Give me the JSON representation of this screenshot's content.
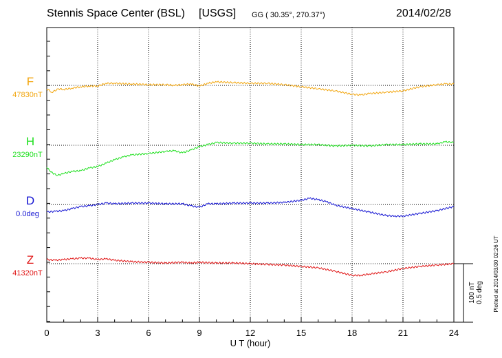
{
  "header": {
    "station": "Stennis Space Center (BSL)",
    "network": "[USGS]",
    "coords": "GG ( 30.35°, 270.37°)",
    "date": "2014/02/28"
  },
  "footer_note": "Plotted at 2014/03/30 02:26 UT",
  "scale": {
    "nt": "100 nT",
    "deg": "0.5 deg"
  },
  "chart_data": {
    "type": "line",
    "title": "Stennis Space Center (BSL) [USGS]",
    "xlabel": "U T (hour)",
    "xlim": [
      0,
      24
    ],
    "x_ticks": [
      "0",
      "3",
      "6",
      "9",
      "12",
      "15",
      "18",
      "21",
      "24"
    ],
    "grid": true,
    "units_note": "each trace offset from its baseline; scale bar 100 nT / 0.5 deg",
    "series": [
      {
        "name": "F",
        "baseline_label": "47830nT",
        "color": "#f2a60f",
        "x": [
          0,
          0.3,
          0.7,
          1,
          1.5,
          2,
          2.5,
          3,
          3.5,
          4,
          5,
          6,
          7,
          7.5,
          8,
          8.5,
          9,
          9.5,
          10,
          11,
          12,
          13,
          14,
          15,
          16,
          17,
          18,
          18.5,
          19,
          20,
          21,
          22,
          23,
          23.5,
          24
        ],
        "y": [
          -10,
          -20,
          -10,
          -12,
          -8,
          -4,
          -2,
          -2,
          6,
          6,
          4,
          2,
          2,
          0,
          2,
          4,
          -2,
          6,
          10,
          8,
          6,
          6,
          2,
          -4,
          -10,
          -16,
          -26,
          -28,
          -24,
          -20,
          -16,
          -4,
          2,
          4,
          4
        ]
      },
      {
        "name": "H",
        "baseline_label": "23290nT",
        "color": "#22e022",
        "x": [
          0,
          0.2,
          0.6,
          1,
          1.5,
          2,
          2.5,
          3,
          3.5,
          4,
          4.5,
          5,
          6,
          7,
          7.5,
          8,
          8.5,
          9,
          9.5,
          10,
          11,
          12,
          13,
          14,
          15,
          16,
          17,
          18,
          19,
          20,
          21,
          22,
          23,
          23.5,
          24
        ],
        "y": [
          -64,
          -76,
          -88,
          -82,
          -76,
          -74,
          -66,
          -62,
          -52,
          -42,
          -34,
          -28,
          -24,
          -18,
          -16,
          -22,
          -14,
          -4,
          2,
          8,
          6,
          6,
          4,
          4,
          2,
          2,
          -2,
          0,
          -2,
          2,
          2,
          4,
          4,
          10,
          8
        ]
      },
      {
        "name": "D",
        "baseline_label": "0.0deg",
        "color": "#1414d2",
        "x": [
          0,
          0.5,
          1,
          1.5,
          2,
          2.5,
          3,
          3.5,
          4,
          5,
          6,
          7,
          8,
          8.5,
          9,
          9.5,
          10,
          11,
          12,
          13,
          14,
          15,
          15.5,
          16,
          16.5,
          17,
          18,
          19,
          20,
          20.5,
          21,
          22,
          23,
          24
        ],
        "y": [
          -22,
          -20,
          -18,
          -12,
          -6,
          -4,
          0,
          4,
          2,
          4,
          4,
          2,
          2,
          -4,
          -8,
          2,
          2,
          4,
          4,
          4,
          6,
          12,
          18,
          14,
          8,
          -2,
          -12,
          -22,
          -32,
          -34,
          -34,
          -26,
          -18,
          -6
        ]
      },
      {
        "name": "Z",
        "baseline_label": "41320nT",
        "color": "#e01616",
        "x": [
          0,
          0.5,
          1,
          1.5,
          2,
          2.5,
          3,
          3.5,
          4,
          5,
          6,
          7,
          8,
          8.5,
          9,
          10,
          11,
          12,
          13,
          14,
          15,
          16,
          17,
          18,
          18.5,
          19,
          20,
          21,
          22,
          23,
          24
        ],
        "y": [
          12,
          10,
          12,
          14,
          16,
          16,
          12,
          14,
          10,
          6,
          4,
          2,
          4,
          2,
          4,
          2,
          2,
          0,
          -2,
          -4,
          -8,
          -12,
          -22,
          -34,
          -34,
          -30,
          -24,
          -14,
          -8,
          -4,
          0
        ]
      }
    ]
  }
}
